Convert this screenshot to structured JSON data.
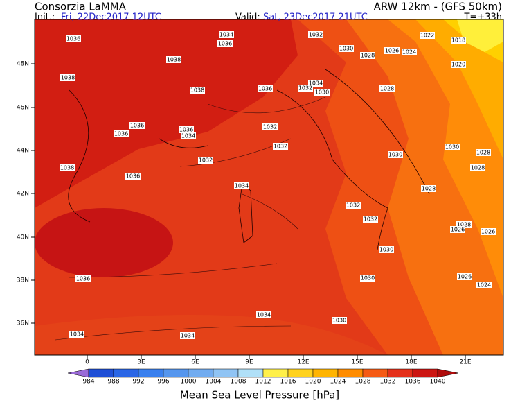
{
  "header": {
    "source": "Consorzia LaMMA",
    "model": "ARW 12km - (GFS 50km)",
    "init_label": "Init.:",
    "init_value": "Fri, 22Dec2017 12UTC",
    "valid_label": "Valid:",
    "valid_value": "Sat, 23Dec2017 21UTC",
    "lead_time": "T=+33h"
  },
  "map": {
    "lat_labels": [
      "48N",
      "46N",
      "44N",
      "42N",
      "40N",
      "38N",
      "36N"
    ],
    "lon_labels": [
      "0",
      "3E",
      "6E",
      "9E",
      "12E",
      "15E",
      "18E",
      "21E"
    ],
    "isobar_labels": [
      "1036",
      "1034",
      "1036",
      "1032",
      "1030",
      "1028",
      "1026",
      "1024",
      "1022",
      "1018",
      "1020",
      "1038",
      "1038",
      "1038",
      "1036",
      "1034",
      "1032",
      "1030",
      "1028",
      "1036",
      "1036",
      "1034",
      "1036",
      "1032",
      "1032",
      "1030",
      "1030",
      "1028",
      "1028",
      "1038",
      "1036",
      "1032",
      "1034",
      "1028",
      "1032",
      "1032",
      "1028",
      "1026",
      "1026",
      "1030",
      "1036",
      "1030",
      "1026",
      "1024",
      "1034",
      "1030",
      "1034",
      "1034"
    ]
  },
  "colorbar": {
    "title": "Mean Sea Level Pressure [hPa]",
    "levels": [
      "984",
      "988",
      "992",
      "996",
      "1000",
      "1004",
      "1008",
      "1012",
      "1016",
      "1020",
      "1024",
      "1028",
      "1032",
      "1036",
      "1040"
    ],
    "colors": [
      "#9a6ad8",
      "#1f4fd6",
      "#2a66e6",
      "#3a80ee",
      "#5596ee",
      "#72acf0",
      "#90c4f4",
      "#b0e0f8",
      "#fff04a",
      "#ffd21e",
      "#ffb400",
      "#ff8c00",
      "#f55a14",
      "#e4301a",
      "#cc1612",
      "#b00c0c"
    ]
  }
}
